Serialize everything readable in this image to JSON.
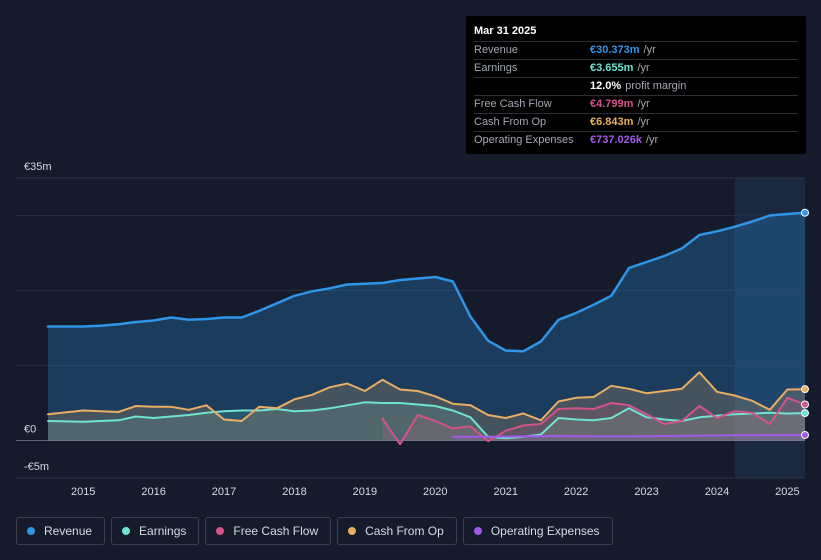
{
  "tooltip": {
    "date": "Mar 31 2025",
    "rows": [
      {
        "label": "Revenue",
        "value": "€30.373m",
        "unit": "/yr",
        "color": "#2f95e6"
      },
      {
        "label": "Earnings",
        "value": "€3.655m",
        "unit": "/yr",
        "color": "#6fe3cf"
      },
      {
        "label": "",
        "value": "12.0%",
        "unit": "profit margin",
        "color": "#ffffff"
      },
      {
        "label": "Free Cash Flow",
        "value": "€4.799m",
        "unit": "/yr",
        "color": "#d4538a"
      },
      {
        "label": "Cash From Op",
        "value": "€6.843m",
        "unit": "/yr",
        "color": "#e9ae62"
      },
      {
        "label": "Operating Expenses",
        "value": "€737.026k",
        "unit": "/yr",
        "color": "#a35ae6"
      }
    ]
  },
  "legend": [
    {
      "label": "Revenue",
      "color": "#2f95e6"
    },
    {
      "label": "Earnings",
      "color": "#6fe3cf"
    },
    {
      "label": "Free Cash Flow",
      "color": "#d4538a"
    },
    {
      "label": "Cash From Op",
      "color": "#e9ae62"
    },
    {
      "label": "Operating Expenses",
      "color": "#a35ae6"
    }
  ],
  "chart_data": {
    "type": "area",
    "title": "",
    "xlabel": "",
    "ylabel": "",
    "ylim": [
      -5,
      35
    ],
    "xlim": [
      2014.5,
      2025.25
    ],
    "y_tick_labels": [
      {
        "value": 35,
        "label": "€35m"
      },
      {
        "value": 0,
        "label": "€0"
      },
      {
        "value": -5,
        "label": "-€5m"
      }
    ],
    "x_ticks": [
      2015,
      2016,
      2017,
      2018,
      2019,
      2020,
      2021,
      2022,
      2023,
      2024,
      2025
    ],
    "x_tick_labels": [
      "2015",
      "2016",
      "2017",
      "2018",
      "2019",
      "2020",
      "2021",
      "2022",
      "2023",
      "2024",
      "2025"
    ],
    "gridlines": [
      30,
      20,
      10,
      0
    ],
    "forecast_start": 2024.25,
    "series": [
      {
        "name": "Revenue",
        "color": "#2f95e6",
        "points": [
          [
            2014.5,
            15.2
          ],
          [
            2015.0,
            15.2
          ],
          [
            2015.25,
            15.3
          ],
          [
            2015.5,
            15.5
          ],
          [
            2015.75,
            15.8
          ],
          [
            2016.0,
            16.0
          ],
          [
            2016.25,
            16.4
          ],
          [
            2016.5,
            16.1
          ],
          [
            2016.75,
            16.2
          ],
          [
            2017.0,
            16.4
          ],
          [
            2017.25,
            16.4
          ],
          [
            2017.5,
            17.3
          ],
          [
            2017.75,
            18.3
          ],
          [
            2018.0,
            19.3
          ],
          [
            2018.25,
            19.9
          ],
          [
            2018.5,
            20.3
          ],
          [
            2018.75,
            20.8
          ],
          [
            2019.0,
            20.9
          ],
          [
            2019.25,
            21.0
          ],
          [
            2019.5,
            21.4
          ],
          [
            2019.75,
            21.6
          ],
          [
            2020.0,
            21.8
          ],
          [
            2020.25,
            21.2
          ],
          [
            2020.5,
            16.5
          ],
          [
            2020.75,
            13.3
          ],
          [
            2021.0,
            12.0
          ],
          [
            2021.25,
            11.9
          ],
          [
            2021.5,
            13.2
          ],
          [
            2021.75,
            16.1
          ],
          [
            2022.0,
            17.0
          ],
          [
            2022.25,
            18.1
          ],
          [
            2022.5,
            19.3
          ],
          [
            2022.75,
            23.0
          ],
          [
            2023.0,
            23.8
          ],
          [
            2023.25,
            24.6
          ],
          [
            2023.5,
            25.6
          ],
          [
            2023.75,
            27.4
          ],
          [
            2024.0,
            27.9
          ],
          [
            2024.25,
            28.5
          ],
          [
            2024.5,
            29.2
          ],
          [
            2024.75,
            30.0
          ],
          [
            2025.0,
            30.2
          ],
          [
            2025.25,
            30.373
          ]
        ]
      },
      {
        "name": "Earnings",
        "color": "#6fe3cf",
        "points": [
          [
            2014.5,
            2.6
          ],
          [
            2015.0,
            2.5
          ],
          [
            2015.25,
            2.6
          ],
          [
            2015.5,
            2.7
          ],
          [
            2015.75,
            3.2
          ],
          [
            2016.0,
            3.0
          ],
          [
            2016.25,
            3.2
          ],
          [
            2016.5,
            3.4
          ],
          [
            2016.75,
            3.7
          ],
          [
            2017.0,
            3.9
          ],
          [
            2017.25,
            4.0
          ],
          [
            2017.5,
            4.0
          ],
          [
            2017.75,
            4.2
          ],
          [
            2018.0,
            3.9
          ],
          [
            2018.25,
            4.0
          ],
          [
            2018.5,
            4.3
          ],
          [
            2018.75,
            4.7
          ],
          [
            2019.0,
            5.1
          ],
          [
            2019.25,
            5.0
          ],
          [
            2019.5,
            5.0
          ],
          [
            2019.75,
            4.8
          ],
          [
            2020.0,
            4.6
          ],
          [
            2020.25,
            4.0
          ],
          [
            2020.5,
            3.1
          ],
          [
            2020.75,
            0.5
          ],
          [
            2021.0,
            0.3
          ],
          [
            2021.25,
            0.5
          ],
          [
            2021.5,
            0.8
          ],
          [
            2021.75,
            3.0
          ],
          [
            2022.0,
            2.8
          ],
          [
            2022.25,
            2.7
          ],
          [
            2022.5,
            3.0
          ],
          [
            2022.75,
            4.3
          ],
          [
            2023.0,
            3.1
          ],
          [
            2023.25,
            2.8
          ],
          [
            2023.5,
            2.6
          ],
          [
            2023.75,
            3.1
          ],
          [
            2024.0,
            3.3
          ],
          [
            2024.25,
            3.5
          ],
          [
            2024.5,
            3.6
          ],
          [
            2024.75,
            3.7
          ],
          [
            2025.0,
            3.6
          ],
          [
            2025.25,
            3.655
          ]
        ]
      },
      {
        "name": "Free Cash Flow",
        "color": "#d4538a",
        "points": [
          [
            2019.25,
            2.9
          ],
          [
            2019.5,
            -0.5
          ],
          [
            2019.75,
            3.4
          ],
          [
            2020.0,
            2.6
          ],
          [
            2020.25,
            1.6
          ],
          [
            2020.5,
            1.9
          ],
          [
            2020.75,
            -0.1
          ],
          [
            2021.0,
            1.3
          ],
          [
            2021.25,
            2.0
          ],
          [
            2021.5,
            2.2
          ],
          [
            2021.75,
            4.2
          ],
          [
            2022.0,
            4.3
          ],
          [
            2022.25,
            4.2
          ],
          [
            2022.5,
            5.0
          ],
          [
            2022.75,
            4.7
          ],
          [
            2023.0,
            3.5
          ],
          [
            2023.25,
            2.2
          ],
          [
            2023.5,
            2.6
          ],
          [
            2023.75,
            4.6
          ],
          [
            2024.0,
            3.0
          ],
          [
            2024.25,
            3.9
          ],
          [
            2024.5,
            3.7
          ],
          [
            2024.75,
            2.2
          ],
          [
            2025.0,
            5.7
          ],
          [
            2025.25,
            4.799
          ]
        ]
      },
      {
        "name": "Cash From Op",
        "color": "#e9ae62",
        "points": [
          [
            2014.5,
            3.5
          ],
          [
            2015.0,
            4.0
          ],
          [
            2015.25,
            3.9
          ],
          [
            2015.5,
            3.8
          ],
          [
            2015.75,
            4.6
          ],
          [
            2016.0,
            4.5
          ],
          [
            2016.25,
            4.5
          ],
          [
            2016.5,
            4.1
          ],
          [
            2016.75,
            4.7
          ],
          [
            2017.0,
            2.8
          ],
          [
            2017.25,
            2.6
          ],
          [
            2017.5,
            4.5
          ],
          [
            2017.75,
            4.3
          ],
          [
            2018.0,
            5.5
          ],
          [
            2018.25,
            6.1
          ],
          [
            2018.5,
            7.1
          ],
          [
            2018.75,
            7.6
          ],
          [
            2019.0,
            6.6
          ],
          [
            2019.25,
            8.1
          ],
          [
            2019.5,
            6.8
          ],
          [
            2019.75,
            6.6
          ],
          [
            2020.0,
            5.9
          ],
          [
            2020.25,
            4.9
          ],
          [
            2020.5,
            4.7
          ],
          [
            2020.75,
            3.4
          ],
          [
            2021.0,
            3.0
          ],
          [
            2021.25,
            3.6
          ],
          [
            2021.5,
            2.7
          ],
          [
            2021.75,
            5.2
          ],
          [
            2022.0,
            5.7
          ],
          [
            2022.25,
            5.8
          ],
          [
            2022.5,
            7.3
          ],
          [
            2022.75,
            6.9
          ],
          [
            2023.0,
            6.3
          ],
          [
            2023.25,
            6.6
          ],
          [
            2023.5,
            6.9
          ],
          [
            2023.75,
            9.1
          ],
          [
            2024.0,
            6.5
          ],
          [
            2024.25,
            6.0
          ],
          [
            2024.5,
            5.3
          ],
          [
            2024.75,
            4.1
          ],
          [
            2025.0,
            6.8
          ],
          [
            2025.25,
            6.843
          ]
        ]
      },
      {
        "name": "Operating Expenses",
        "color": "#a35ae6",
        "points": [
          [
            2020.25,
            0.5
          ],
          [
            2020.75,
            0.5
          ],
          [
            2021.25,
            0.55
          ],
          [
            2021.75,
            0.6
          ],
          [
            2022.25,
            0.55
          ],
          [
            2022.75,
            0.55
          ],
          [
            2023.25,
            0.6
          ],
          [
            2023.75,
            0.65
          ],
          [
            2024.25,
            0.7
          ],
          [
            2024.75,
            0.72
          ],
          [
            2025.25,
            0.737
          ]
        ]
      }
    ]
  }
}
